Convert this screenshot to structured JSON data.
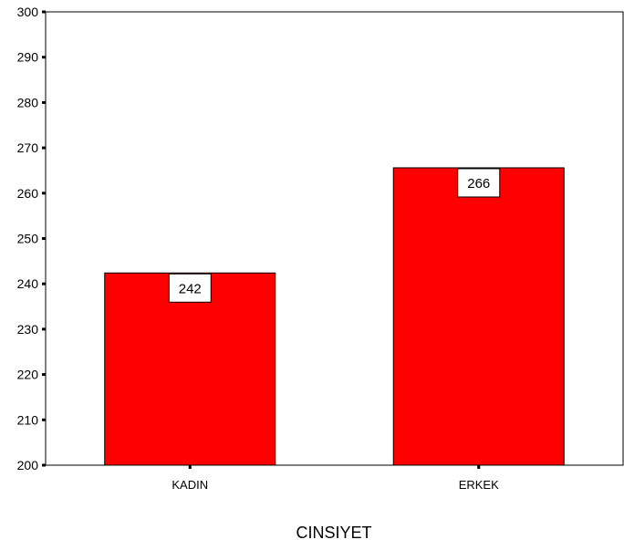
{
  "chart_data": {
    "type": "bar",
    "title": "",
    "xlabel": "CINSIYET",
    "ylabel": "",
    "categories": [
      "KADIN",
      "ERKEK"
    ],
    "values": [
      242.4,
      265.6
    ],
    "data_labels": [
      "242",
      "266"
    ],
    "ylim": [
      200,
      300
    ],
    "yticks": [
      200,
      210,
      220,
      230,
      240,
      250,
      260,
      270,
      280,
      290,
      300
    ],
    "grid": false,
    "legend": "none",
    "bar_color": "#FF0000",
    "bar_edge_color": "#000000"
  }
}
